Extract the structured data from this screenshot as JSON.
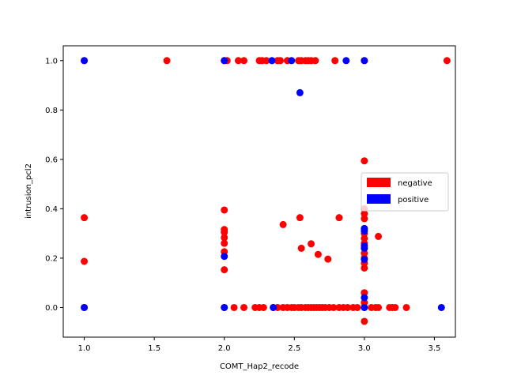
{
  "chart_data": {
    "type": "scatter",
    "title": "",
    "xlabel": "COMT_Hap2_recode",
    "ylabel": "intrusion_pcl2",
    "xlim": [
      0.85,
      3.65
    ],
    "ylim": [
      -0.12,
      1.06
    ],
    "xticks": [
      "1.0",
      "1.5",
      "2.0",
      "2.5",
      "3.0",
      "3.5"
    ],
    "yticks": [
      "0.0",
      "0.2",
      "0.4",
      "0.6",
      "0.8",
      "1.0"
    ],
    "grid": false,
    "legend": {
      "placement": "right",
      "entries": [
        {
          "label": "negative",
          "color": "#ff0000"
        },
        {
          "label": "positive",
          "color": "#0000ff"
        }
      ]
    },
    "series": [
      {
        "name": "negative",
        "color": "#ff0000",
        "points": [
          [
            1.0,
            1.0
          ],
          [
            1.0,
            0.364
          ],
          [
            1.0,
            0.187
          ],
          [
            1.0,
            0.0
          ],
          [
            1.59,
            1.0
          ],
          [
            2.0,
            1.0
          ],
          [
            2.02,
            1.0
          ],
          [
            2.1,
            1.0
          ],
          [
            2.14,
            1.0
          ],
          [
            2.25,
            1.0
          ],
          [
            2.27,
            1.0
          ],
          [
            2.3,
            1.0
          ],
          [
            2.38,
            1.0
          ],
          [
            2.4,
            1.0
          ],
          [
            2.45,
            1.0
          ],
          [
            2.53,
            1.0
          ],
          [
            2.55,
            1.0
          ],
          [
            2.58,
            1.0
          ],
          [
            2.6,
            1.0
          ],
          [
            2.62,
            1.0
          ],
          [
            2.65,
            1.0
          ],
          [
            2.79,
            1.0
          ],
          [
            3.0,
            1.0
          ],
          [
            3.59,
            1.0
          ],
          [
            3.0,
            0.594
          ],
          [
            2.0,
            0.395
          ],
          [
            2.0,
            0.316
          ],
          [
            2.0,
            0.305
          ],
          [
            2.0,
            0.283
          ],
          [
            2.0,
            0.26
          ],
          [
            2.0,
            0.226
          ],
          [
            2.0,
            0.153
          ],
          [
            2.42,
            0.336
          ],
          [
            2.54,
            0.364
          ],
          [
            2.55,
            0.24
          ],
          [
            2.62,
            0.258
          ],
          [
            2.67,
            0.215
          ],
          [
            2.74,
            0.196
          ],
          [
            2.82,
            0.364
          ],
          [
            3.0,
            0.4
          ],
          [
            3.0,
            0.38
          ],
          [
            3.0,
            0.36
          ],
          [
            3.0,
            0.32
          ],
          [
            3.0,
            0.3
          ],
          [
            3.0,
            0.28
          ],
          [
            3.0,
            0.26
          ],
          [
            3.0,
            0.24
          ],
          [
            3.0,
            0.22
          ],
          [
            3.0,
            0.2
          ],
          [
            3.0,
            0.18
          ],
          [
            3.0,
            0.16
          ],
          [
            3.0,
            0.06
          ],
          [
            3.0,
            0.02
          ],
          [
            3.0,
            -0.056
          ],
          [
            3.1,
            0.288
          ],
          [
            2.0,
            0.0
          ],
          [
            2.07,
            0.0
          ],
          [
            2.14,
            0.0
          ],
          [
            2.22,
            0.0
          ],
          [
            2.25,
            0.0
          ],
          [
            2.28,
            0.0
          ],
          [
            2.35,
            0.0
          ],
          [
            2.38,
            0.0
          ],
          [
            2.42,
            0.0
          ],
          [
            2.45,
            0.0
          ],
          [
            2.48,
            0.0
          ],
          [
            2.5,
            0.0
          ],
          [
            2.53,
            0.0
          ],
          [
            2.55,
            0.0
          ],
          [
            2.58,
            0.0
          ],
          [
            2.6,
            0.0
          ],
          [
            2.62,
            0.0
          ],
          [
            2.64,
            0.0
          ],
          [
            2.66,
            0.0
          ],
          [
            2.68,
            0.0
          ],
          [
            2.7,
            0.0
          ],
          [
            2.72,
            0.0
          ],
          [
            2.75,
            0.0
          ],
          [
            2.78,
            0.0
          ],
          [
            2.82,
            0.0
          ],
          [
            2.85,
            0.0
          ],
          [
            2.88,
            0.0
          ],
          [
            2.92,
            0.0
          ],
          [
            2.95,
            0.0
          ],
          [
            3.0,
            0.0
          ],
          [
            3.05,
            0.0
          ],
          [
            3.08,
            0.0
          ],
          [
            3.1,
            0.0
          ],
          [
            3.18,
            0.0
          ],
          [
            3.2,
            0.0
          ],
          [
            3.22,
            0.0
          ],
          [
            3.3,
            0.0
          ]
        ]
      },
      {
        "name": "positive",
        "color": "#0000ff",
        "points": [
          [
            1.0,
            1.0
          ],
          [
            1.0,
            0.0
          ],
          [
            2.0,
            1.0
          ],
          [
            2.34,
            1.0
          ],
          [
            2.48,
            1.0
          ],
          [
            2.87,
            1.0
          ],
          [
            3.0,
            1.0
          ],
          [
            2.54,
            0.87
          ],
          [
            3.0,
            0.32
          ],
          [
            3.0,
            0.31
          ],
          [
            3.0,
            0.25
          ],
          [
            3.0,
            0.24
          ],
          [
            3.0,
            0.195
          ],
          [
            3.0,
            0.04
          ],
          [
            2.0,
            0.207
          ],
          [
            2.0,
            0.0
          ],
          [
            2.35,
            0.0
          ],
          [
            3.0,
            0.0
          ],
          [
            3.55,
            0.0
          ]
        ]
      }
    ]
  }
}
